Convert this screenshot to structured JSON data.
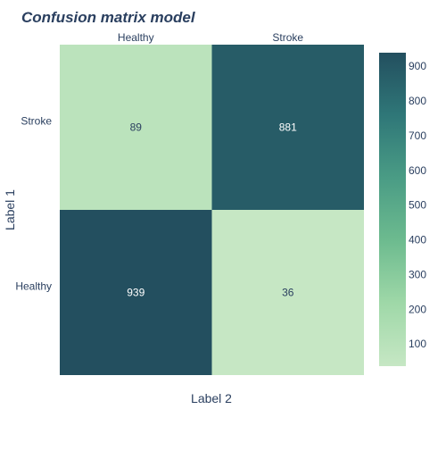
{
  "chart_data": {
    "type": "heatmap",
    "title": "Confusion matrix model",
    "xlabel": "Label 2",
    "ylabel": "Label 1",
    "x_categories": [
      "Healthy",
      "Stroke"
    ],
    "y_categories": [
      "Stroke",
      "Healthy"
    ],
    "z": [
      [
        89,
        881
      ],
      [
        939,
        36
      ]
    ],
    "colorscale": {
      "min": 36,
      "max": 939,
      "colors": [
        "#c6e7c4",
        "#9fd8a8",
        "#6dbb8f",
        "#4a9c85",
        "#2f7778",
        "#234f5f"
      ],
      "ticks": [
        100,
        200,
        300,
        400,
        500,
        600,
        700,
        800,
        900
      ]
    },
    "x_axis_position": "top",
    "grid": false,
    "colorbar_position": "right"
  }
}
